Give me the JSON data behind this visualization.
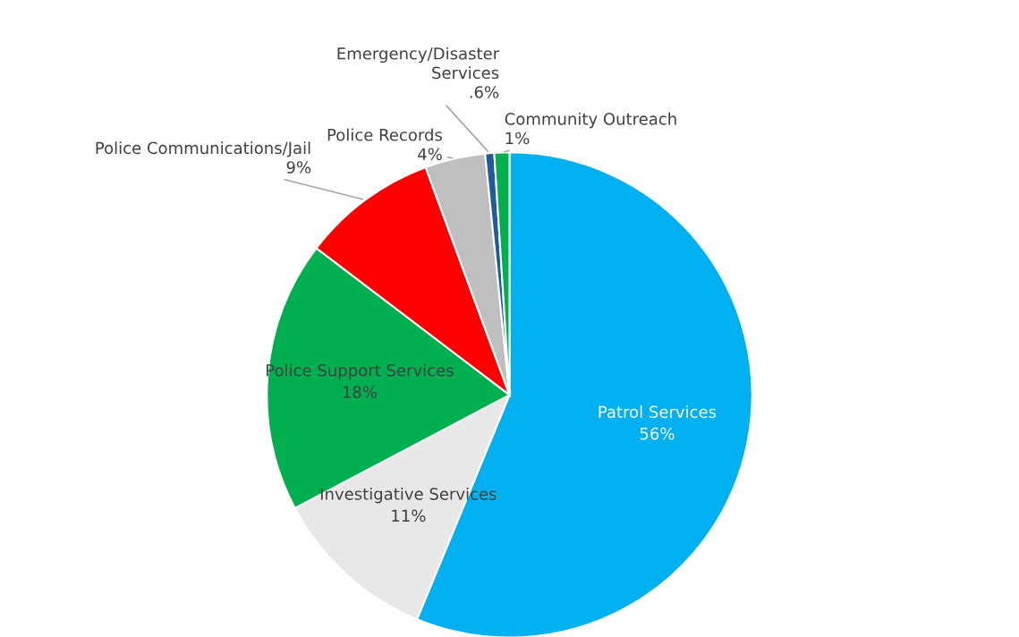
{
  "chart_data": {
    "type": "pie",
    "categories": [
      "Patrol Services",
      "Investigative Services",
      "Police Support Services",
      "Police Communications/Jail",
      "Police Records",
      "Emergency/Disaster\nServices",
      "Community Outreach"
    ],
    "values": [
      56,
      11,
      18,
      9,
      4,
      0.6,
      1
    ],
    "value_labels": [
      "56%",
      "11%",
      "18%",
      "9%",
      "4%",
      ".6%",
      "1%"
    ],
    "colors": [
      "#00b0f0",
      "#e8e8e8",
      "#00b050",
      "#ff0000",
      "#bfbfbf",
      "#1f5c99",
      "#00b050"
    ],
    "legend": false
  }
}
